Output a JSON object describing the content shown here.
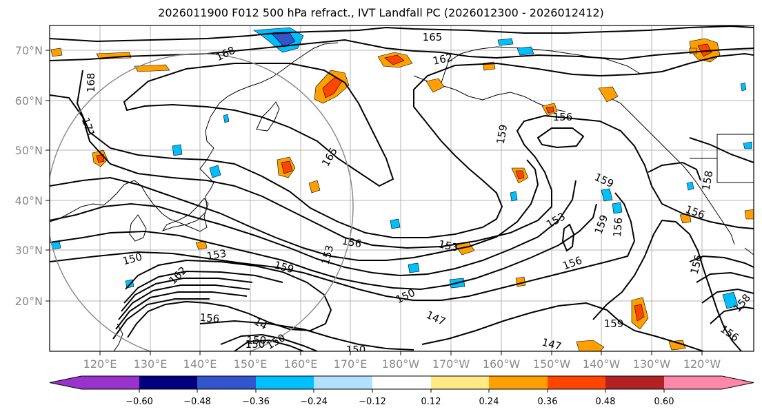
{
  "title": "2026011900 F012 500 hPa refract., IVT Landfall PC (2026012300 - 2026012412)",
  "lat_labels": [
    "70°N",
    "60°N",
    "50°N",
    "40°N",
    "30°N",
    "20°N"
  ],
  "lon_labels": [
    "120°E",
    "130°E",
    "140°E",
    "150°E",
    "160°E",
    "170°E",
    "180°W",
    "170°W",
    "160°W",
    "150°W",
    "140°W",
    "130°W",
    "120°W"
  ],
  "contour_labels": [
    "165",
    "162",
    "168",
    "168",
    "171",
    "165",
    "159",
    "156",
    "156",
    "159",
    "158",
    "156",
    "153",
    "156",
    "153",
    "159",
    "153",
    "156",
    "150",
    "162",
    "153",
    "159",
    "150",
    "156",
    "147",
    "159",
    "156",
    "147",
    "150",
    "158",
    "156",
    "150",
    "14",
    "150",
    "150"
  ],
  "colorbar": {
    "colors": [
      "#9933cc",
      "#00007f",
      "#3355cc",
      "#00bfff",
      "#b0e2ff",
      "#ffffff",
      "#ffea85",
      "#ffa000",
      "#ff4500",
      "#b22222",
      "#ff88aa"
    ],
    "tick_labels": [
      "−0.60",
      "−0.48",
      "−0.36",
      "−0.24",
      "−0.12",
      "0.12",
      "0.24",
      "0.36",
      "0.48",
      "0.60"
    ]
  }
}
